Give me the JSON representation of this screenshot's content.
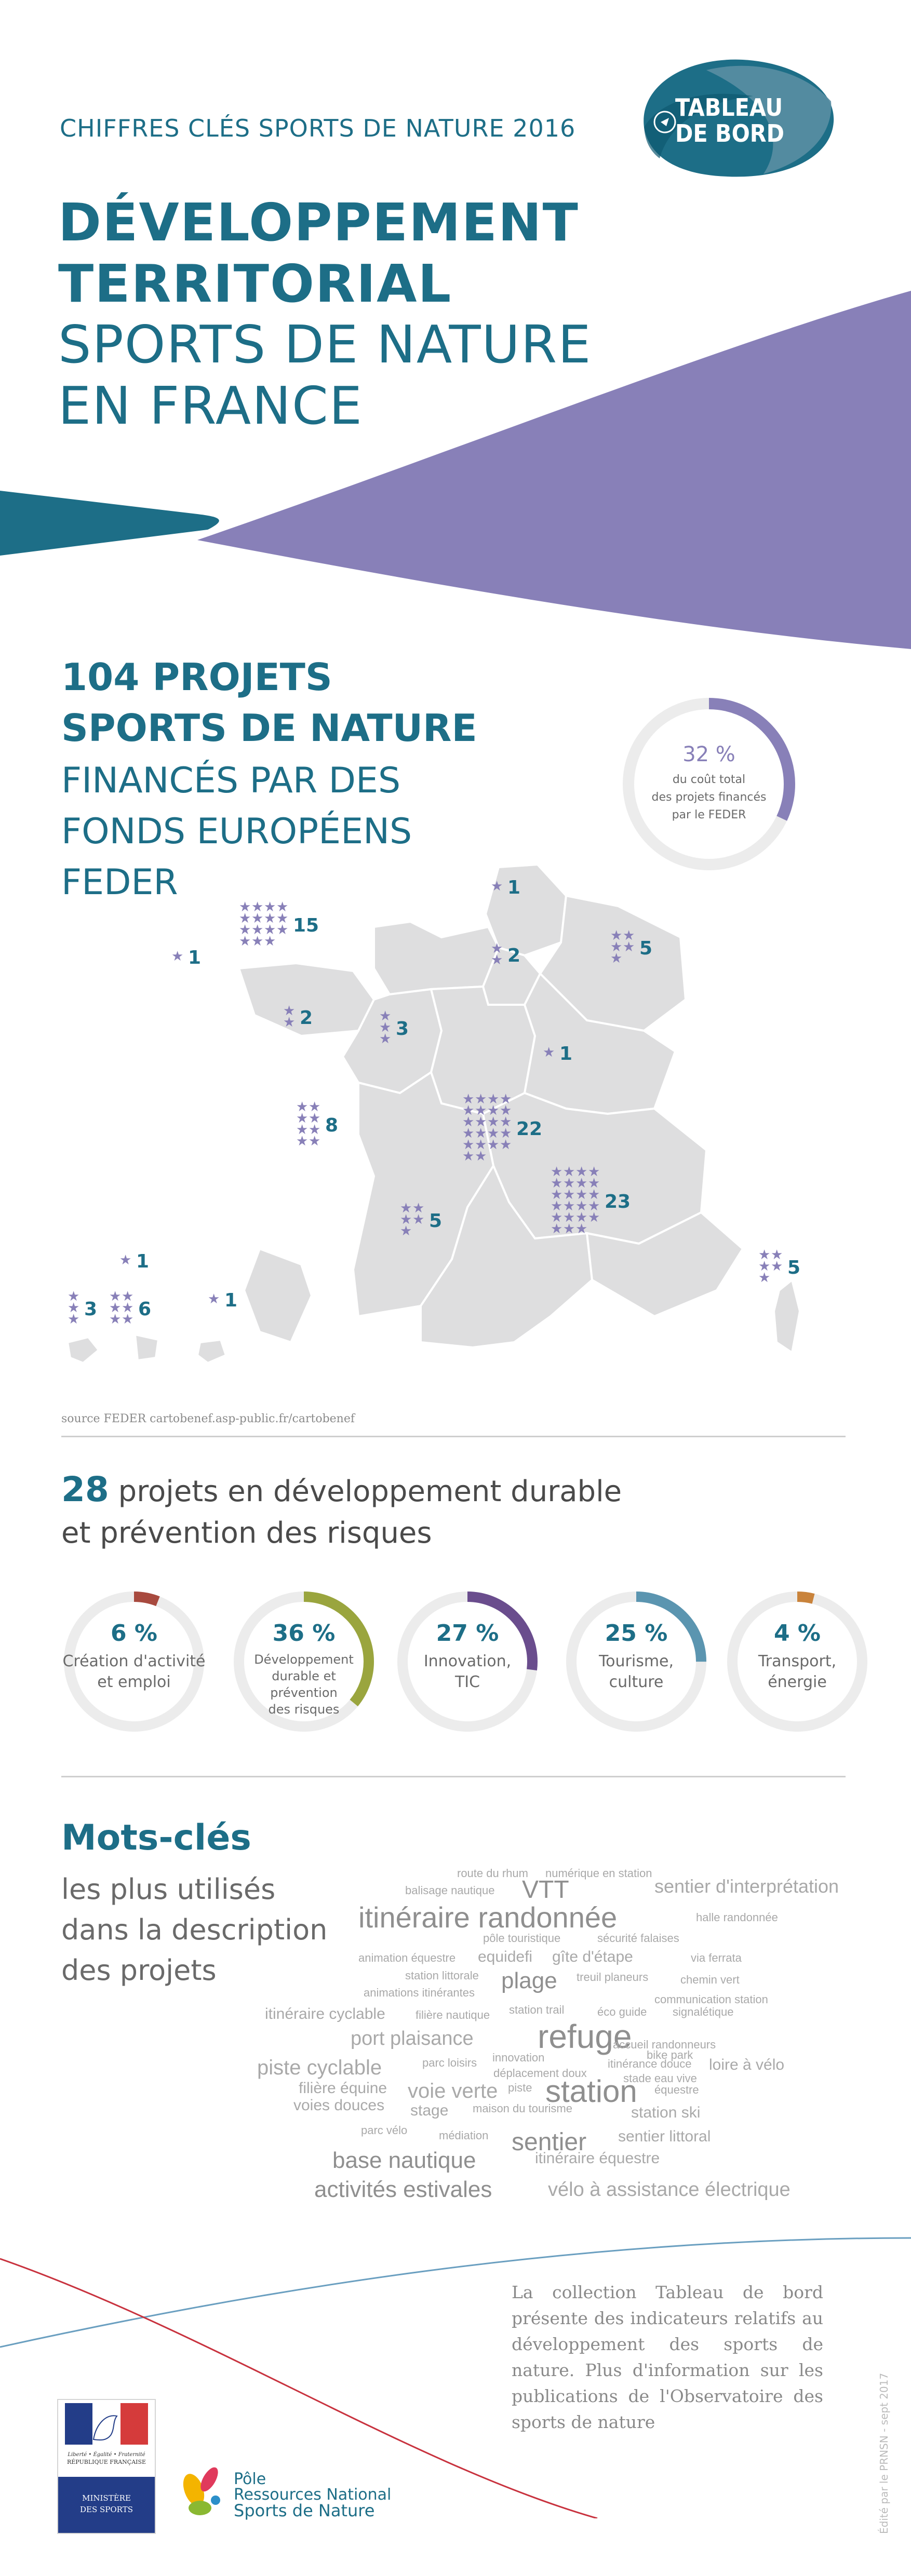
{
  "header": {
    "kicker": "CHIFFRES CLÉS SPORTS DE NATURE 2016",
    "badge_line1": "TABLEAU",
    "badge_line2": "DE BORD",
    "title_bold": [
      "DÉVELOPPEMENT",
      "TERRITORIAL"
    ],
    "title_light": [
      "SPORTS DE NATURE",
      "EN FRANCE"
    ]
  },
  "projects": {
    "headline_bold": [
      "104 PROJETS",
      "SPORTS DE NATURE"
    ],
    "headline_light": [
      "FINANCÉS PAR DES",
      "FONDS EUROPÉENS",
      "FEDER"
    ],
    "share": {
      "pct": "32 %",
      "value": 0.32,
      "caption": [
        "du coût total",
        "des projets financés",
        "par le FEDER"
      ]
    },
    "regions": [
      {
        "region": "Hauts-de-France",
        "count": "1"
      },
      {
        "region": "Normandie",
        "count": "15"
      },
      {
        "region": "Île-de-France",
        "count": "2"
      },
      {
        "region": "Grand Est",
        "count": "5"
      },
      {
        "region": "Bretagne",
        "count": "1"
      },
      {
        "region": "Pays de la Loire",
        "count": "2"
      },
      {
        "region": "Centre-Val de Loire",
        "count": "3"
      },
      {
        "region": "Bourgogne-Franche-Comté",
        "count": "1"
      },
      {
        "region": "Nouvelle-Aquitaine",
        "count": "8"
      },
      {
        "region": "Auvergne-Rhône-Alpes",
        "count": "22"
      },
      {
        "region": "Occitanie",
        "count": "5"
      },
      {
        "region": "Provence-Alpes-Côte d'Azur",
        "count": "23"
      },
      {
        "region": "Corse",
        "count": "5"
      },
      {
        "region": "Guyane",
        "count": "1"
      },
      {
        "region": "Guadeloupe",
        "count": "3"
      },
      {
        "region": "Martinique",
        "count": "6"
      },
      {
        "region": "La Réunion",
        "count": "1"
      }
    ],
    "source": "source FEDER cartobenef.asp-public.fr/cartobenef"
  },
  "durable": {
    "count": "28",
    "line1_rest": "projets en développement durable",
    "line2": "et prévention des risques",
    "items": [
      {
        "pct": "6 %",
        "value": 0.06,
        "label": [
          "Création d'activité",
          "et emploi"
        ],
        "color": "#a84a3f"
      },
      {
        "pct": "36 %",
        "value": 0.36,
        "label": [
          "Développement",
          "durable et",
          "prévention",
          "des risques"
        ],
        "color": "#9aa53e"
      },
      {
        "pct": "27 %",
        "value": 0.27,
        "label": [
          "Innovation,",
          "TIC"
        ],
        "color": "#6a4d8d"
      },
      {
        "pct": "25 %",
        "value": 0.25,
        "label": [
          "Tourisme,",
          "culture"
        ],
        "color": "#5b95b0"
      },
      {
        "pct": "4 %",
        "value": 0.04,
        "label": [
          "Transport,",
          "énergie"
        ],
        "color": "#c9833b"
      }
    ]
  },
  "keywords": {
    "title": "Mots-clés",
    "subtitle": [
      "les plus utilisés",
      "dans la description",
      "des projets"
    ],
    "words": [
      "route du rhum",
      "numérique en station",
      "balisage nautique",
      "VTT",
      "sentier d'interprétation",
      "itinéraire randonnée",
      "halle randonnée",
      "pôle touristique",
      "sécurité falaises",
      "animation équestre",
      "equidefi",
      "gîte d'étape",
      "via ferrata",
      "station littorale",
      "plage",
      "treuil planeurs",
      "chemin vert",
      "animations itinérantes",
      "communication station",
      "itinéraire cyclable",
      "filière nautique",
      "station trail",
      "éco guide",
      "signalétique",
      "port plaisance",
      "refuge",
      "accueil randonneurs",
      "bike park",
      "piste cyclable",
      "parc loisirs",
      "innovation",
      "itinérance douce",
      "loire à vélo",
      "déplacement doux",
      "stade eau vive",
      "filière équine",
      "voie verte",
      "piste",
      "station",
      "équestre",
      "voies douces",
      "stage",
      "maison du tourisme",
      "station ski",
      "parc vélo",
      "médiation",
      "sentier",
      "sentier littoral",
      "base nautique",
      "itinéraire équestre",
      "activités estivales",
      "vélo à assistance électrique"
    ]
  },
  "footer": {
    "text": "La collection Tableau de bord présente des indicateurs relatifs au développement des sports de nature. Plus d'information sur les publications de l'Observatoire des sports de nature",
    "side_credit": "Édité par le PRNSN - sept 2017",
    "ministere_liberte": "Liberté • Égalité • Fraternité",
    "ministere_rf": "RÉPUBLIQUE FRANÇAISE",
    "ministere_label": [
      "MINISTÈRE",
      "DES SPORTS"
    ],
    "prn_line1": "Pôle",
    "prn_line2": "Ressources National",
    "prn_line3": "Sports de Nature"
  },
  "colors": {
    "teal": "#1d6e87",
    "purple": "#8880b8",
    "grey_map": "#dededf"
  }
}
